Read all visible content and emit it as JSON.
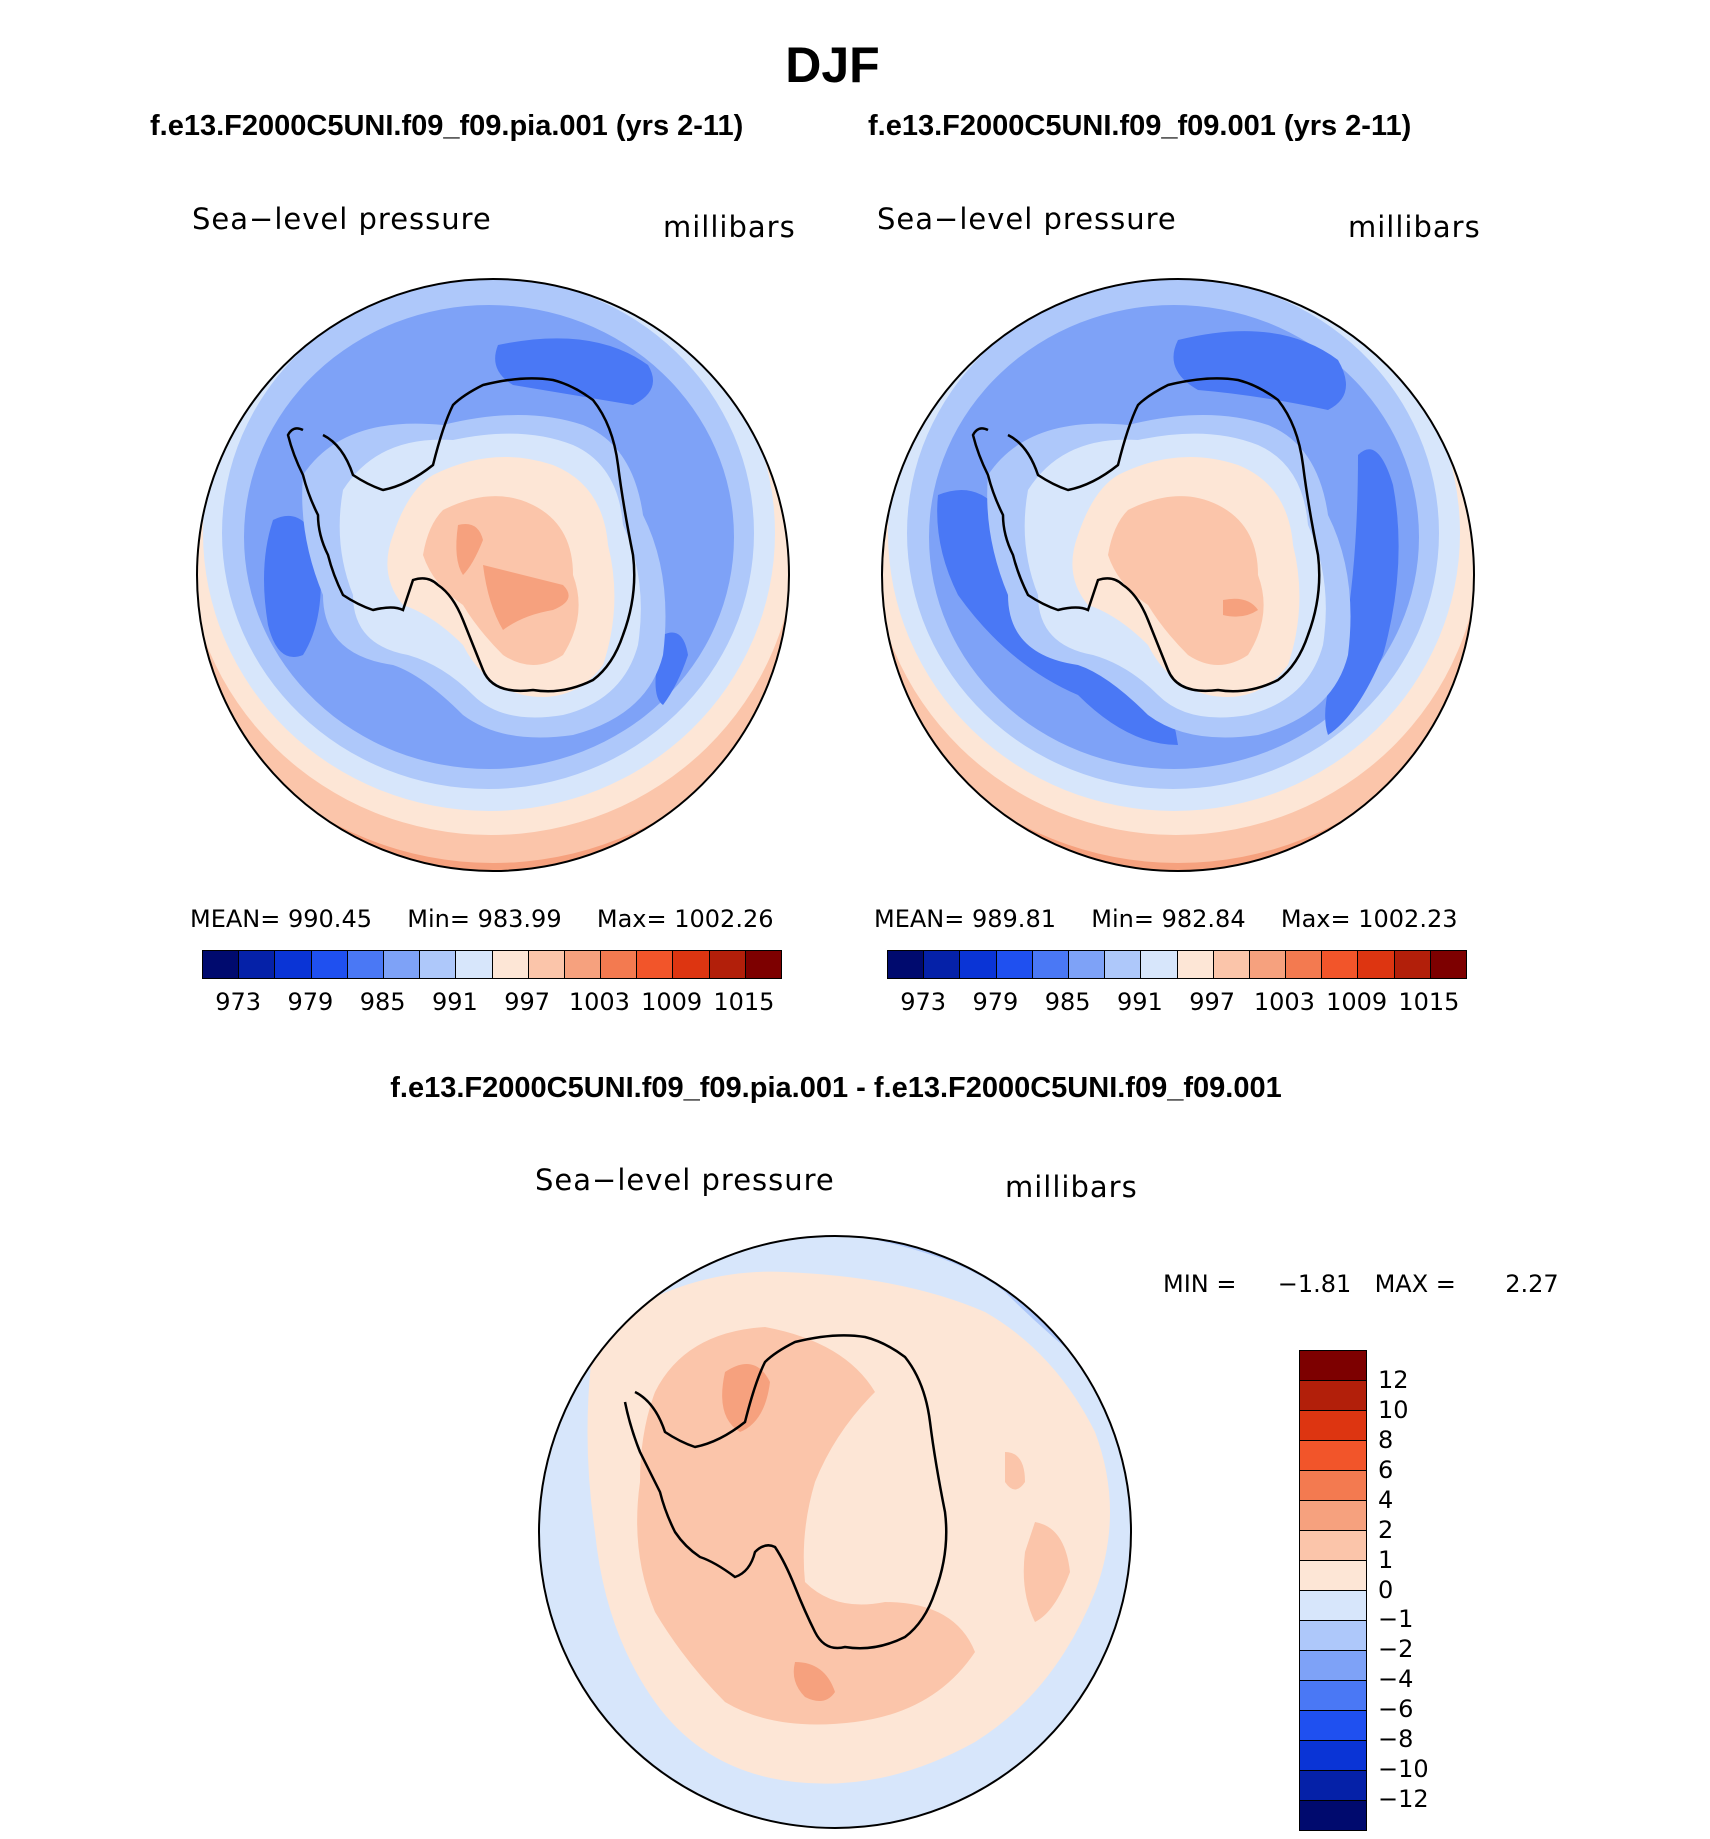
{
  "season": "DJF",
  "panel1": {
    "title": "f.e13.F2000C5UNI.f09_f09.pia.001 (yrs 2-11)",
    "variable": "Sea−level pressure",
    "units": "millibars",
    "mean_label": "MEAN=",
    "mean": "990.45",
    "min_label": "Min=",
    "min": "983.99",
    "max_label": "Max=",
    "max": "1002.26"
  },
  "panel2": {
    "title": "f.e13.F2000C5UNI.f09_f09.001 (yrs 2-11)",
    "variable": "Sea−level pressure",
    "units": "millibars",
    "mean_label": "MEAN=",
    "mean": "989.81",
    "min_label": "Min=",
    "min": "982.84",
    "max_label": "Max=",
    "max": "1002.23"
  },
  "panel3": {
    "title": "f.e13.F2000C5UNI.f09_f09.pia.001 - f.e13.F2000C5UNI.f09_f09.001",
    "variable": "Sea−level pressure",
    "units": "millibars",
    "min_label": "MIN =",
    "min": "−1.81",
    "max_label": "MAX =",
    "max": "2.27"
  },
  "colorbar_abs": {
    "colors": [
      "#000a6e",
      "#0521a8",
      "#0a34d6",
      "#1f50f0",
      "#4a78f5",
      "#7ea2f7",
      "#aec8fa",
      "#d7e6fb",
      "#fde6d6",
      "#fbc5aa",
      "#f6a17e",
      "#f37a50",
      "#f2552a",
      "#dd3511",
      "#b21f0a",
      "#7d0000"
    ],
    "ticks": [
      "973",
      "979",
      "985",
      "991",
      "997",
      "1003",
      "1009",
      "1015"
    ]
  },
  "colorbar_diff": {
    "colors": [
      "#7d0000",
      "#b21f0a",
      "#dd3511",
      "#f2552a",
      "#f37a50",
      "#f6a17e",
      "#fbc5aa",
      "#fde6d6",
      "#d7e6fb",
      "#aec8fa",
      "#7ea2f7",
      "#4a78f5",
      "#1f50f0",
      "#0a34d6",
      "#0521a8",
      "#000a6e"
    ],
    "ticks": [
      "12",
      "10",
      "8",
      "6",
      "4",
      "2",
      "1",
      "0",
      "−1",
      "−2",
      "−4",
      "−6",
      "−8",
      "−10",
      "−12"
    ]
  },
  "chart_data": [
    {
      "type": "heatmap",
      "title": "f.e13.F2000C5UNI.f09_f09.pia.001 (yrs 2-11)",
      "variable": "Sea-level pressure",
      "units": "millibars",
      "projection": "south polar stereographic",
      "levels": [
        973,
        976,
        979,
        982,
        985,
        988,
        991,
        994,
        997,
        1000,
        1003,
        1006,
        1009,
        1012,
        1015
      ],
      "mean": 990.45,
      "min": 983.99,
      "max": 1002.26
    },
    {
      "type": "heatmap",
      "title": "f.e13.F2000C5UNI.f09_f09.001 (yrs 2-11)",
      "variable": "Sea-level pressure",
      "units": "millibars",
      "projection": "south polar stereographic",
      "levels": [
        973,
        976,
        979,
        982,
        985,
        988,
        991,
        994,
        997,
        1000,
        1003,
        1006,
        1009,
        1012,
        1015
      ],
      "mean": 989.81,
      "min": 982.84,
      "max": 1002.23
    },
    {
      "type": "heatmap",
      "title": "f.e13.F2000C5UNI.f09_f09.pia.001 - f.e13.F2000C5UNI.f09_f09.001",
      "variable": "Sea-level pressure",
      "units": "millibars",
      "projection": "south polar stereographic",
      "levels": [
        -12,
        -10,
        -8,
        -6,
        -4,
        -2,
        -1,
        0,
        1,
        2,
        4,
        6,
        8,
        10,
        12
      ],
      "min": -1.81,
      "max": 2.27
    }
  ]
}
